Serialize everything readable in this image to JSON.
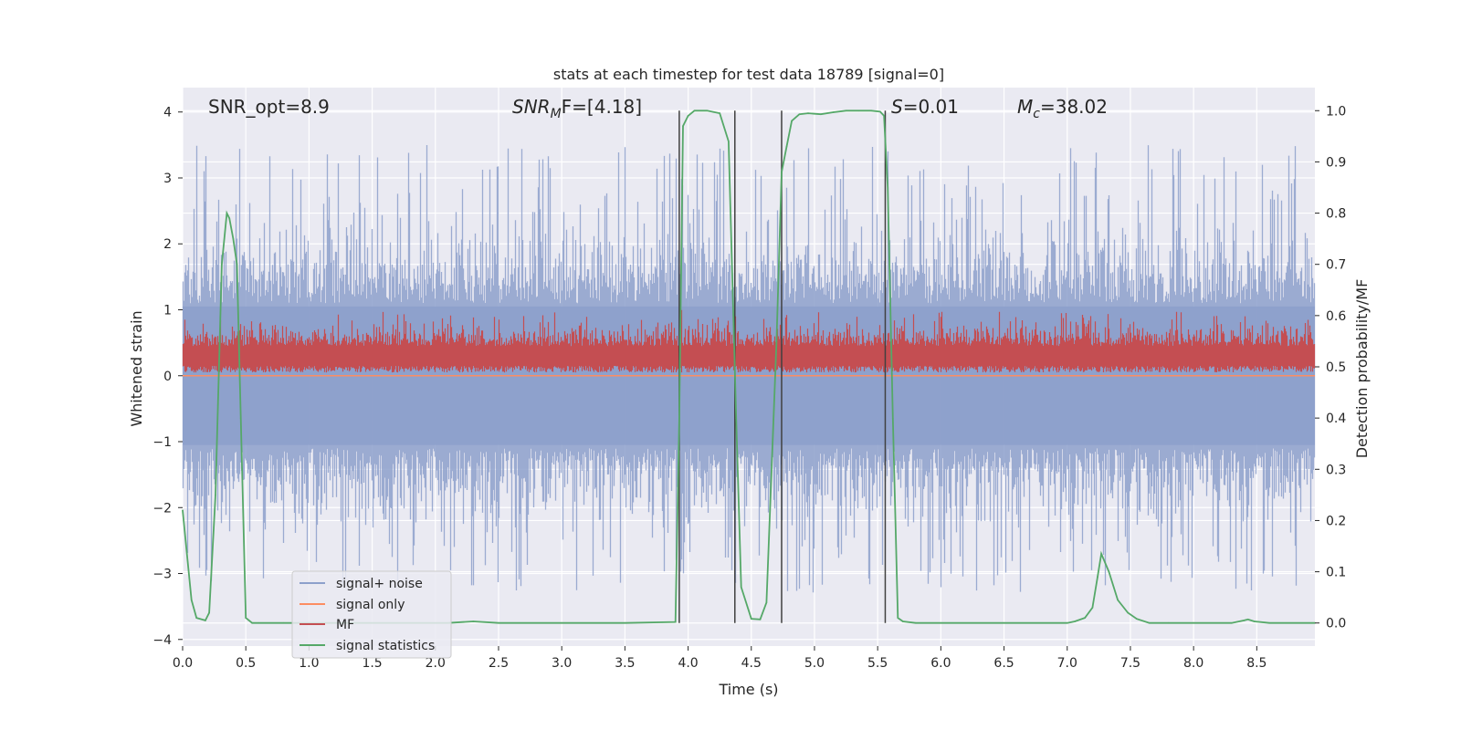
{
  "chart_data": {
    "type": "line",
    "title": "stats at each timestep for test data 18789 [signal=0]",
    "xlabel": "Time (s)",
    "ylabel_left": "Whitened strain",
    "ylabel_right": "Detection probability/MF",
    "xlim": [
      0.0,
      8.96
    ],
    "ylim_left": [
      -4.1,
      4.37
    ],
    "ylim_right": [
      -0.045,
      1.045
    ],
    "x_ticks": [
      "0.0",
      "0.5",
      "1.0",
      "1.5",
      "2.0",
      "2.5",
      "3.0",
      "3.5",
      "4.0",
      "4.5",
      "5.0",
      "5.5",
      "6.0",
      "6.5",
      "7.0",
      "7.5",
      "8.0",
      "8.5"
    ],
    "y_ticks_left": [
      "4",
      "3",
      "2",
      "1",
      "0",
      "−1",
      "−2",
      "−3",
      "−4"
    ],
    "y_ticks_right": [
      "1.0",
      "0.9",
      "0.8",
      "0.7",
      "0.6",
      "0.5",
      "0.4",
      "0.3",
      "0.2",
      "0.1",
      "0.0"
    ],
    "grid": true,
    "legend_position": "lower-left",
    "annotations": {
      "snr_opt": "SNR_opt=8.9",
      "snr_mf_main": "SNR",
      "snr_mf_sub": "M",
      "snr_mf_rest": "F=[4.18]",
      "s_main": "S",
      "s_rest": "=0.01",
      "mc_main": "M",
      "mc_sub": "c",
      "mc_rest": "=38.02"
    },
    "colors": {
      "noise": "#8da0cb",
      "signal_only": "#fc8d62",
      "mf": "#c44e52",
      "stat": "#55a868",
      "vline": "#404040",
      "background": "#eaeaf2"
    },
    "series": [
      {
        "name": "signal+ noise",
        "axis": "left",
        "envelope": "noise band, peaks ~[-3.7, 4.0]"
      },
      {
        "name": "signal only",
        "axis": "left",
        "values": [
          0
        ]
      },
      {
        "name": "MF",
        "axis": "left",
        "band": [
          0.0,
          1.0
        ]
      },
      {
        "name": "signal statistics",
        "axis": "right",
        "x": [
          0.0,
          0.07,
          0.11,
          0.18,
          0.21,
          0.26,
          0.31,
          0.35,
          0.37,
          0.4,
          0.43,
          0.46,
          0.5,
          0.55,
          0.6,
          0.8,
          1.0,
          1.5,
          2.0,
          2.1,
          2.3,
          2.5,
          3.0,
          3.5,
          3.9,
          3.93,
          3.96,
          4.0,
          4.05,
          4.15,
          4.25,
          4.32,
          4.38,
          4.42,
          4.5,
          4.57,
          4.62,
          4.7,
          4.74,
          4.78,
          4.82,
          4.88,
          4.95,
          5.05,
          5.15,
          5.25,
          5.35,
          5.45,
          5.52,
          5.55,
          5.58,
          5.62,
          5.66,
          5.7,
          5.8,
          6.0,
          6.5,
          7.0,
          7.06,
          7.14,
          7.2,
          7.24,
          7.27,
          7.33,
          7.4,
          7.48,
          7.55,
          7.65,
          7.8,
          8.0,
          8.3,
          8.4,
          8.43,
          8.48,
          8.6,
          8.96
        ],
        "values": [
          0.22,
          0.045,
          0.01,
          0.005,
          0.02,
          0.25,
          0.7,
          0.8,
          0.79,
          0.75,
          0.7,
          0.4,
          0.01,
          0.0,
          0.0,
          0.0,
          0.0,
          0.0,
          0.0,
          0.0,
          0.003,
          0.0,
          0.0,
          0.0,
          0.002,
          0.4,
          0.97,
          0.99,
          1.0,
          1.0,
          0.995,
          0.94,
          0.4,
          0.07,
          0.008,
          0.007,
          0.04,
          0.55,
          0.88,
          0.93,
          0.98,
          0.993,
          0.995,
          0.993,
          0.997,
          1.0,
          1.0,
          1.0,
          0.998,
          0.99,
          0.85,
          0.4,
          0.01,
          0.003,
          0.0,
          0.0,
          0.0,
          0.0,
          0.003,
          0.01,
          0.03,
          0.09,
          0.135,
          0.1,
          0.045,
          0.02,
          0.008,
          0.0,
          0.0,
          0.0,
          0.0,
          0.005,
          0.007,
          0.003,
          0.0,
          0.0
        ]
      }
    ],
    "vlines_x": [
      3.93,
      4.37,
      4.74,
      5.56
    ]
  }
}
